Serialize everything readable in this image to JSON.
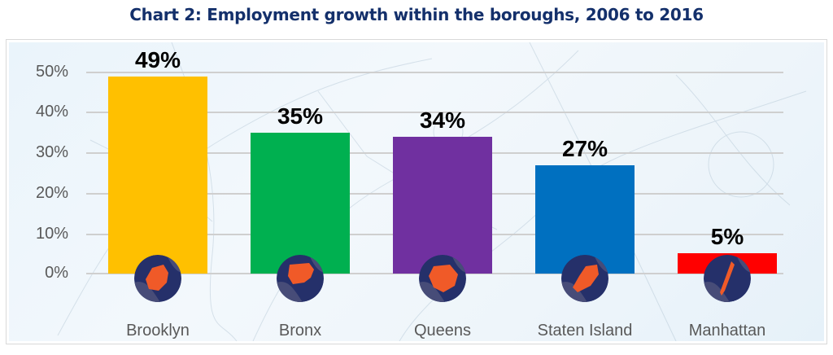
{
  "title": "Chart 2: Employment growth within the boroughs, 2006 to 2016",
  "y_axis": {
    "ticks": [
      "50%",
      "40%",
      "30%",
      "20%",
      "10%",
      "0%"
    ]
  },
  "bars": [
    {
      "category": "Brooklyn",
      "value": 49,
      "label": "49%",
      "color": "#ffc000",
      "icon": "brooklyn-map-icon"
    },
    {
      "category": "Bronx",
      "value": 35,
      "label": "35%",
      "color": "#00b050",
      "icon": "bronx-map-icon"
    },
    {
      "category": "Queens",
      "value": 34,
      "label": "34%",
      "color": "#7030a0",
      "icon": "queens-map-icon"
    },
    {
      "category": "Staten Island",
      "value": 27,
      "label": "27%",
      "color": "#0070c0",
      "icon": "staten-island-map-icon"
    },
    {
      "category": "Manhattan",
      "value": 5,
      "label": "5%",
      "color": "#ff0000",
      "icon": "manhattan-map-icon"
    }
  ],
  "badge_colors": {
    "circle": "#25306a",
    "circle_light": "#474c78",
    "borough": "#f05a28"
  },
  "chart_data": {
    "type": "bar",
    "title": "Chart 2: Employment growth within the boroughs, 2006 to 2016",
    "categories": [
      "Brooklyn",
      "Bronx",
      "Queens",
      "Staten Island",
      "Manhattan"
    ],
    "values": [
      49,
      35,
      34,
      27,
      5
    ],
    "data_labels": [
      "49%",
      "35%",
      "34%",
      "27%",
      "5%"
    ],
    "colors": [
      "#ffc000",
      "#00b050",
      "#7030a0",
      "#0070c0",
      "#ff0000"
    ],
    "xlabel": "",
    "ylabel": "",
    "ylim": [
      0,
      50
    ],
    "yticks": [
      "0%",
      "10%",
      "20%",
      "30%",
      "40%",
      "50%"
    ],
    "grid": true,
    "legend": "none"
  }
}
